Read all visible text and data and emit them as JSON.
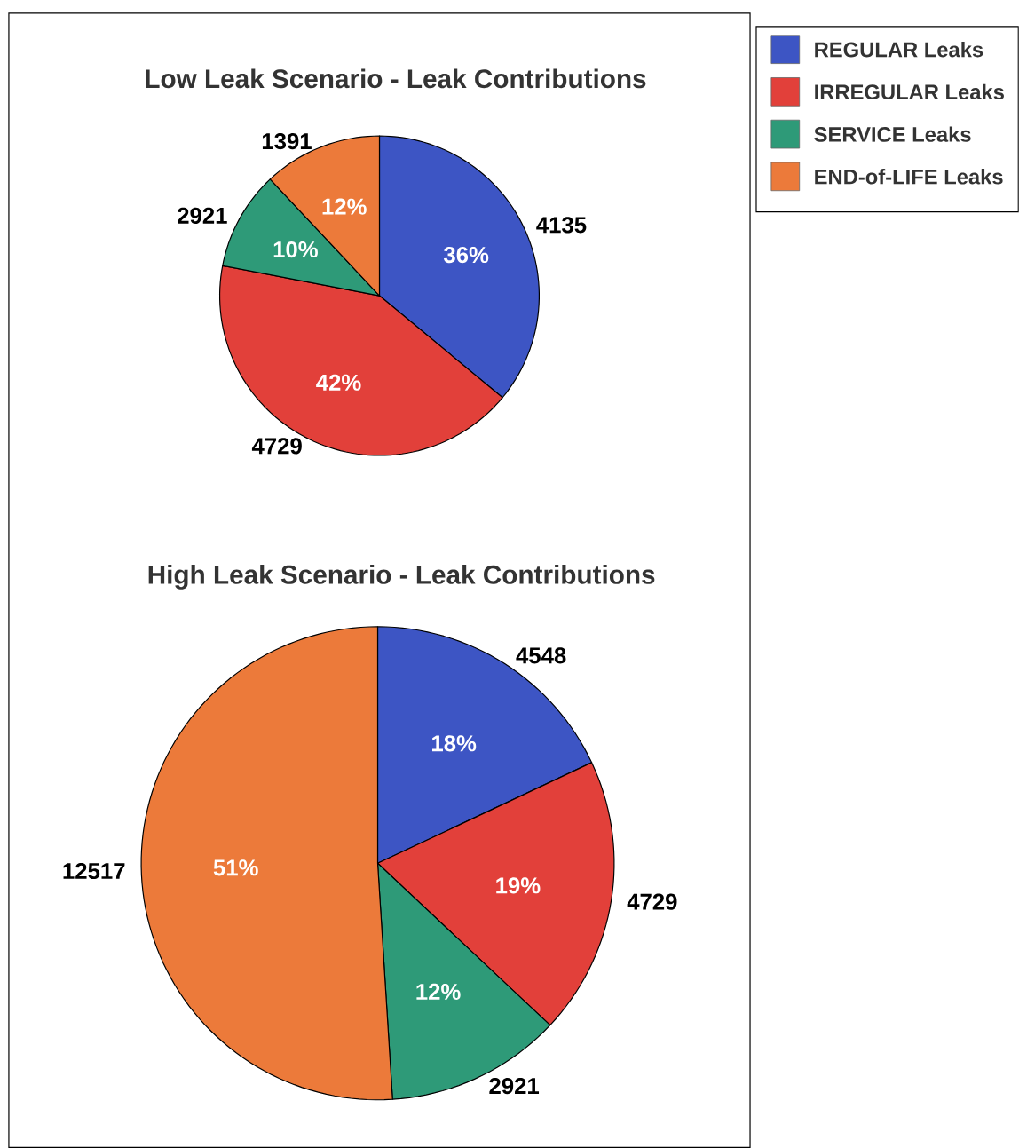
{
  "chart_data": [
    {
      "type": "pie",
      "title": "Low Leak Scenario - Leak Contributions",
      "categories": [
        "REGULAR Leaks",
        "IRREGULAR Leaks",
        "SERVICE Leaks",
        "END-of-LIFE Leaks"
      ],
      "values": [
        36,
        42,
        10,
        12
      ],
      "colors": [
        "#3d55c4",
        "#e2403a",
        "#2e9a78",
        "#ec7a3a"
      ],
      "value_labels": [
        "36%",
        "42%",
        "10%",
        "12%"
      ],
      "annotations": [
        "4135",
        "4729",
        "2921",
        "1391"
      ],
      "legend": "top right"
    },
    {
      "type": "pie",
      "title": "High Leak Scenario - Leak Contributions",
      "categories": [
        null,
        null,
        null,
        null
      ],
      "values": [
        18,
        19,
        12,
        51
      ],
      "colors": [
        "#3d55c4",
        "#e2403a",
        "#2e9a78",
        "#ec7a3a"
      ],
      "value_labels": [
        "18%",
        "19%",
        "12%",
        "51%"
      ],
      "annotations": [
        "4548",
        "4729",
        "2921",
        "12517"
      ]
    }
  ]
}
